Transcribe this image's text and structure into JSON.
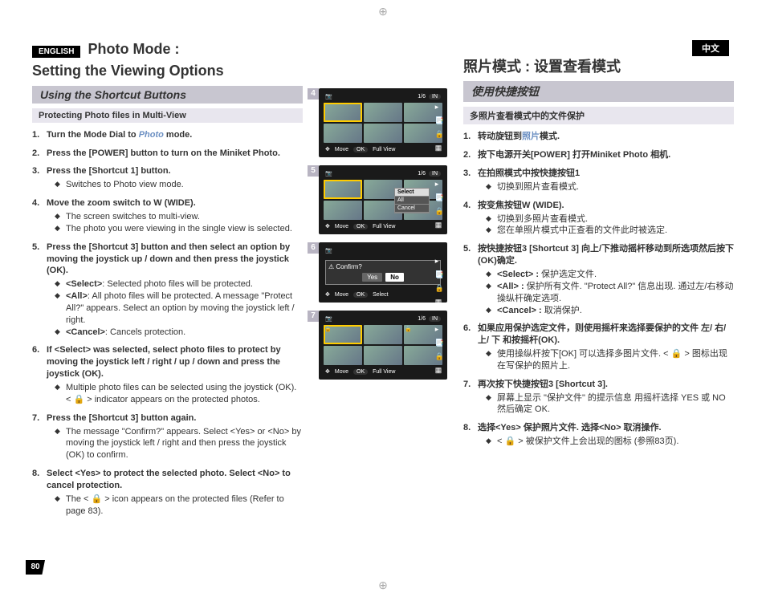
{
  "left": {
    "lang_badge": "ENGLISH",
    "heading_line1": "Photo Mode :",
    "heading_line2": "Setting the Viewing Options",
    "section": "Using the Shortcut Buttons",
    "subsection": "Protecting Photo files in Multi-View",
    "steps": [
      {
        "n": "1.",
        "title": "Turn the Mode Dial to ",
        "title_suffix": " mode.",
        "photo_word": "Photo"
      },
      {
        "n": "2.",
        "title": "Press the [POWER] button to turn on the Miniket Photo."
      },
      {
        "n": "3.",
        "title": "Press the [Shortcut 1] button.",
        "bullets": [
          "Switches to Photo view mode."
        ]
      },
      {
        "n": "4.",
        "title": "Move the zoom switch to W (WIDE).",
        "bullets": [
          "The screen switches to multi-view.",
          "The photo you were viewing in the single view is selected."
        ]
      },
      {
        "n": "5.",
        "title": "Press the [Shortcut 3] button and then select an option by moving the joystick up / down and then press the joystick (OK).",
        "bullets_rich": [
          {
            "term": "<Select>",
            "text": ": Selected photo files will be protected."
          },
          {
            "term": "<All>",
            "text": ": All photo files will be protected. A message \"Protect All?\" appears. Select an option by moving the joystick left / right."
          },
          {
            "term": "<Cancel>",
            "text": ": Cancels protection."
          }
        ]
      },
      {
        "n": "6.",
        "title": "If <Select> was selected, select photo files to protect by moving the joystick left / right / up / down and press the joystick (OK).",
        "bullets": [
          "Multiple photo files can be selected using the joystick (OK). < 🔒 > indicator appears on the protected photos."
        ]
      },
      {
        "n": "7.",
        "title": "Press the [Shortcut 3] button again.",
        "bullets": [
          "The message \"Confirm?\" appears. Select <Yes> or <No> by moving the joystick left / right and then press the joystick (OK) to confirm."
        ]
      },
      {
        "n": "8.",
        "title": "Select <Yes> to protect the selected photo. Select <No> to cancel protection.",
        "bullets": [
          "The < 🔒 > icon appears on the protected files (Refer to page 83)."
        ]
      }
    ]
  },
  "center": {
    "shots": [
      {
        "badge": "4",
        "counter": "1/6",
        "mem": "IN",
        "bottom_left": "Move",
        "bottom_right": "Full View",
        "type": "grid"
      },
      {
        "badge": "5",
        "counter": "1/6",
        "mem": "IN",
        "bottom_left": "Move",
        "bottom_right": "Full View",
        "type": "grid",
        "menu": [
          "Select",
          "All",
          "Cancel"
        ],
        "menu_hl": 0
      },
      {
        "badge": "6",
        "type": "confirm",
        "confirm_title": "Confirm?",
        "yes": "Yes",
        "no": "No",
        "bottom_left": "Move",
        "bottom_right": "Select"
      },
      {
        "badge": "7",
        "counter": "1/6",
        "mem": "IN",
        "bottom_left": "Move",
        "bottom_right": "Full View",
        "type": "grid",
        "locks": true
      }
    ],
    "icons_right": [
      "▸",
      "📑",
      "🔒",
      "▦"
    ]
  },
  "right": {
    "lang_badge": "中文",
    "heading": "照片模式 : 设置查看模式",
    "section": "使用快捷按钮",
    "subsection": "多照片查看模式中的文件保护",
    "steps": [
      {
        "n": "1.",
        "text": "转动旋钮到",
        "photo": "照片",
        "suffix": "模式."
      },
      {
        "n": "2.",
        "text": "按下电源开关[POWER] 打开Miniket Photo 相机."
      },
      {
        "n": "3.",
        "text": "在拍照模式中按快捷按钮1",
        "bullets": [
          "切换到照片查看模式."
        ]
      },
      {
        "n": "4.",
        "text": "按变焦按钮W (WIDE).",
        "bullets": [
          "切换到多照片查看模式.",
          "您在单照片模式中正查看的文件此时被选定."
        ]
      },
      {
        "n": "5.",
        "text": "按快捷按钮3 [Shortcut 3] 向上/下推动摇杆移动到所选项然后按下(OK)确定.",
        "bullets_rich": [
          {
            "term": "<Select> :",
            "text": "保护选定文件."
          },
          {
            "term": "<All> :",
            "text": "保护所有文件. \"Protect All?\" 信息出现. 通过左/右移动操纵杆确定选项."
          },
          {
            "term": "<Cancel> :",
            "text": "取消保护."
          }
        ]
      },
      {
        "n": "6.",
        "text": "如果应用保护选定文件，则使用摇杆来选择要保护的文件 左/ 右/ 上/ 下 和按摇杆(OK).",
        "bullets": [
          "使用操纵杆按下[OK] 可以选择多图片文件. < 🔒 > 图标出现在写保护的照片上."
        ]
      },
      {
        "n": "7.",
        "text": "再次按下快捷按钮3 [Shortcut 3].",
        "bullets": [
          "屏幕上显示 \"保护文件\" 的提示信息 用摇杆选择 YES 或 NO 然后确定 OK."
        ]
      },
      {
        "n": "8.",
        "text": "选择<Yes> 保护照片文件. 选择<No> 取消操作.",
        "bullets": [
          "< 🔒 > 被保护文件上会出现的图标 (参照83页)."
        ]
      }
    ]
  },
  "page_number": "80"
}
